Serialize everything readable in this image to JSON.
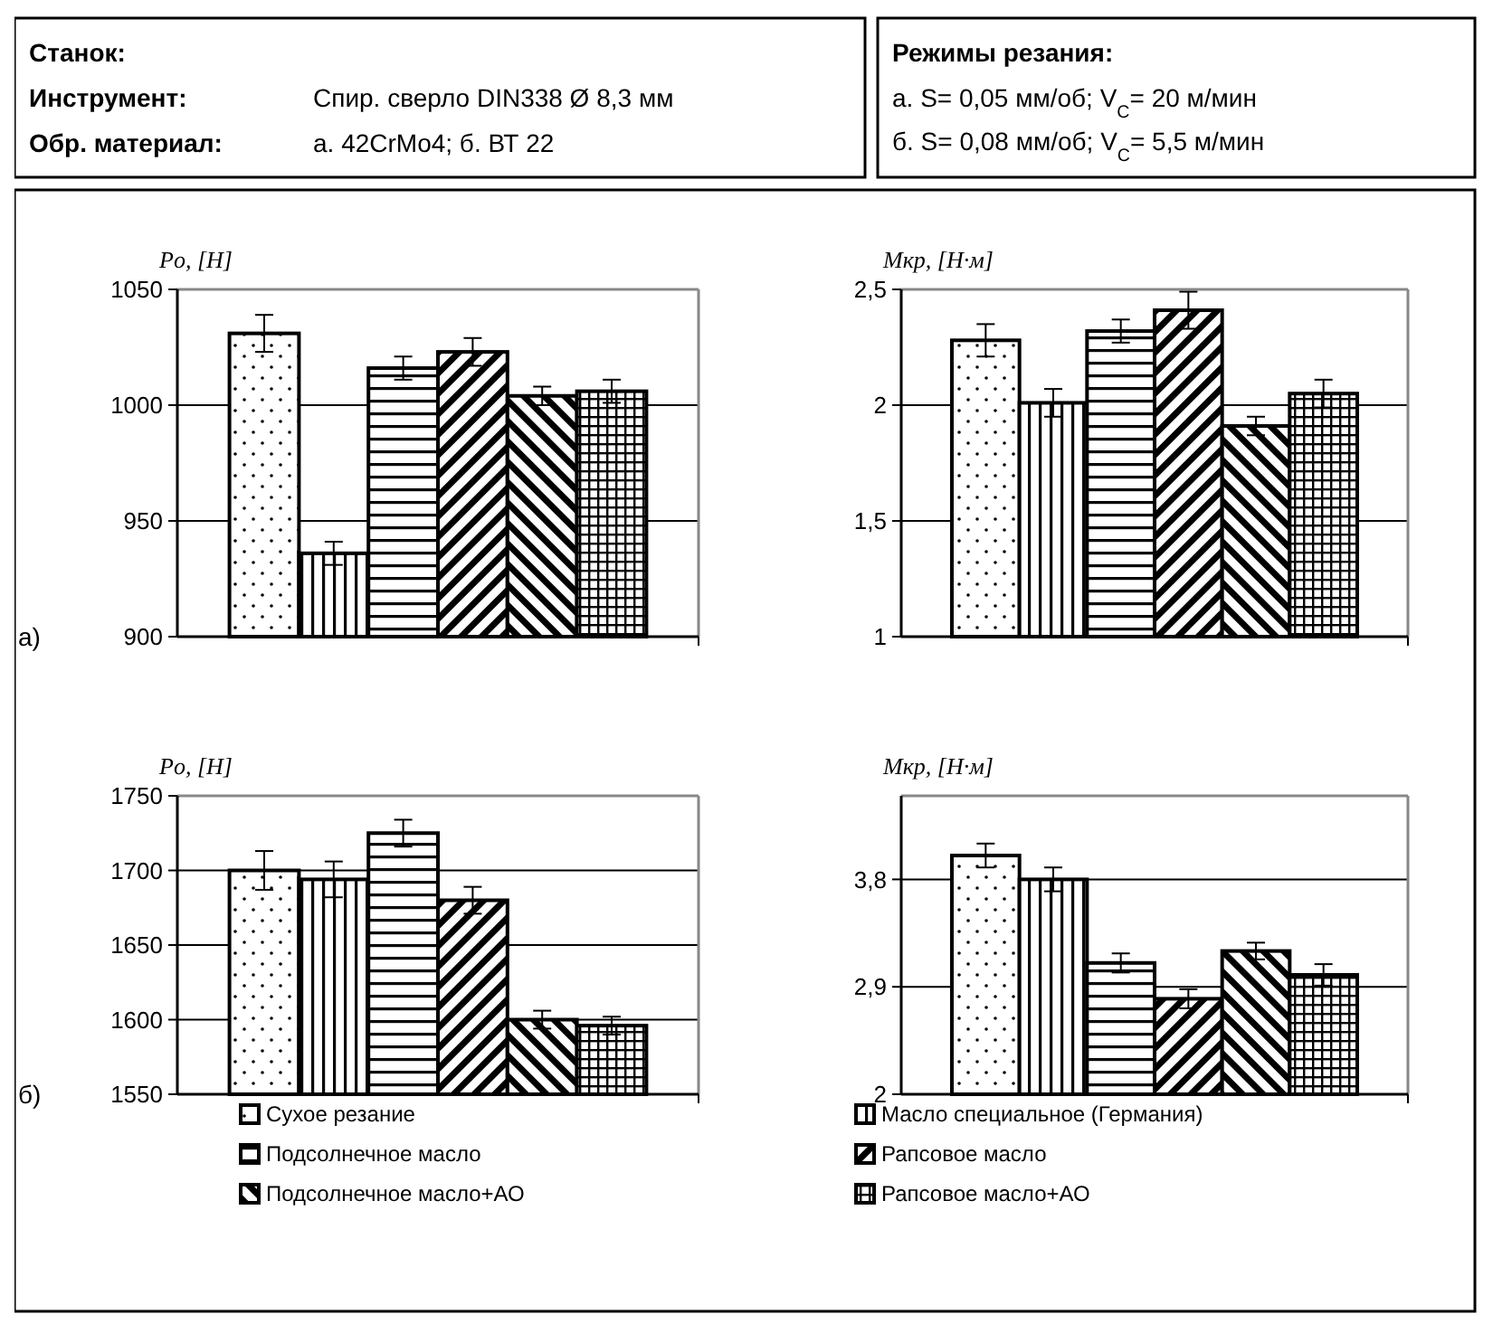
{
  "chart_data": [
    {
      "type": "other",
      "annotations": [
        "Станок:",
        "Инструмент:",
        "Обр. материал:",
        "Спир. сверло DIN338 Ø 8,3 мм",
        "а. 42CrMo4;   б. ВТ 22"
      ]
    },
    {
      "type": "other",
      "title": "Режимы резания:",
      "annotations": [
        "а. S= 0,05 мм/об; V$_{C}$= 20 м/мин",
        "б. S= 0,08 мм/об; V$_{C}$= 5,5 м/мин"
      ]
    },
    {
      "type": "bar",
      "ylabel": "Po, [Н]",
      "categories": [
        null
      ],
      "ylim": [
        900,
        1050
      ],
      "yticks": [
        900,
        950,
        1000,
        1050
      ],
      "grid": "y",
      "legend": false,
      "annotations": [
        "а)"
      ],
      "series": [
        {
          "color": "#000000",
          "values": [
            1031
          ],
          "errors": [
            8
          ]
        },
        {
          "color": "#000000",
          "values": [
            936
          ],
          "errors": [
            5
          ]
        },
        {
          "color": "#000000",
          "values": [
            1016
          ],
          "errors": [
            5
          ]
        },
        {
          "color": "#000000",
          "values": [
            1023
          ],
          "errors": [
            6
          ]
        },
        {
          "color": "#000000",
          "values": [
            1004
          ],
          "errors": [
            4
          ]
        },
        {
          "color": "#000000",
          "values": [
            1006
          ],
          "errors": [
            5
          ]
        }
      ]
    },
    {
      "type": "bar",
      "ylabel": "Mкр, [Н·м]",
      "categories": [
        null
      ],
      "ylim": [
        1,
        2.5
      ],
      "yticks": [
        1,
        {
          "value": 1.5,
          "label": "1,5"
        },
        2,
        {
          "value": 2.5,
          "label": "2,5"
        }
      ],
      "grid": "y",
      "legend": false,
      "series": [
        {
          "color": "#000000",
          "values": [
            2.28
          ],
          "errors": [
            0.07
          ]
        },
        {
          "color": "#000000",
          "values": [
            2.01
          ],
          "errors": [
            0.06
          ]
        },
        {
          "color": "#000000",
          "values": [
            2.32
          ],
          "errors": [
            0.05
          ]
        },
        {
          "color": "#000000",
          "values": [
            2.41
          ],
          "errors": [
            0.08
          ]
        },
        {
          "color": "#000000",
          "values": [
            1.91
          ],
          "errors": [
            0.04
          ]
        },
        {
          "color": "#000000",
          "values": [
            2.05
          ],
          "errors": [
            0.06
          ]
        }
      ]
    },
    {
      "type": "bar",
      "ylabel": "Po, [Н]",
      "categories": [
        null
      ],
      "ylim": [
        1550,
        1750
      ],
      "yticks": [
        1550,
        1600,
        1650,
        1700,
        1750
      ],
      "grid": "y",
      "legend": false,
      "annotations": [
        "б)"
      ],
      "series": [
        {
          "color": "#000000",
          "values": [
            1700
          ],
          "errors": [
            13
          ]
        },
        {
          "color": "#000000",
          "values": [
            1694
          ],
          "errors": [
            12
          ]
        },
        {
          "color": "#000000",
          "values": [
            1725
          ],
          "errors": [
            9
          ]
        },
        {
          "color": "#000000",
          "values": [
            1680
          ],
          "errors": [
            9
          ]
        },
        {
          "color": "#000000",
          "values": [
            1600
          ],
          "errors": [
            6
          ]
        },
        {
          "color": "#000000",
          "values": [
            1596
          ],
          "errors": [
            6
          ]
        }
      ]
    },
    {
      "type": "bar",
      "ylabel": "Mкр, [Н·м]",
      "categories": [
        null
      ],
      "ylim": [
        2,
        4.5
      ],
      "yticks": [
        2,
        {
          "value": 2.9,
          "label": "2,9"
        },
        {
          "value": 3.8,
          "label": "3,8"
        }
      ],
      "grid": "y",
      "legend": "bottom",
      "series": [
        {
          "name": "Сухое резание",
          "color": "#000000",
          "values": [
            4.0
          ],
          "errors": [
            0.1
          ]
        },
        {
          "name": "Масло специальное (Германия)",
          "color": "#000000",
          "values": [
            3.8
          ],
          "errors": [
            0.1
          ]
        },
        {
          "name": "Подсолнечное масло",
          "color": "#000000",
          "values": [
            3.1
          ],
          "errors": [
            0.08
          ]
        },
        {
          "name": "Рапсовое масло",
          "color": "#000000",
          "values": [
            2.8
          ],
          "errors": [
            0.08
          ]
        },
        {
          "name": "Подсолнечное масло+АО",
          "color": "#000000",
          "values": [
            3.2
          ],
          "errors": [
            0.07
          ]
        },
        {
          "name": "Рапсовое масло+АО",
          "color": "#000000",
          "values": [
            3.0
          ],
          "errors": [
            0.09
          ]
        }
      ]
    }
  ]
}
